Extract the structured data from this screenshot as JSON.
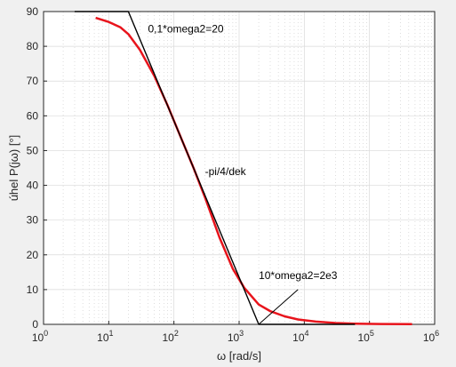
{
  "chart_data": {
    "type": "line",
    "xscale": "log",
    "xlim": [
      1,
      1000000
    ],
    "ylim": [
      0,
      90
    ],
    "grid": true,
    "minor_grid": true,
    "xlabel": "ω [rad/s]",
    "ylabel": "úhel P(jω) [°]",
    "xticks": [
      {
        "value": 1,
        "base": "10",
        "exp": "0"
      },
      {
        "value": 10,
        "base": "10",
        "exp": "1"
      },
      {
        "value": 100,
        "base": "10",
        "exp": "2"
      },
      {
        "value": 1000,
        "base": "10",
        "exp": "3"
      },
      {
        "value": 10000,
        "base": "10",
        "exp": "4"
      },
      {
        "value": 100000,
        "base": "10",
        "exp": "5"
      },
      {
        "value": 1000000,
        "base": "10",
        "exp": "6"
      }
    ],
    "yticks": [
      0,
      10,
      20,
      30,
      40,
      50,
      60,
      70,
      80,
      90
    ],
    "series": [
      {
        "color": "#e8141c",
        "x": [
          6.3,
          10,
          15,
          20,
          30,
          50,
          80,
          120,
          200,
          300,
          500,
          800,
          1200,
          2000,
          3000,
          5000,
          8000,
          15000,
          30000,
          60000,
          150000,
          450000
        ],
        "y": [
          88.2,
          87.0,
          85.5,
          83.5,
          79.0,
          71.5,
          63.0,
          55.0,
          45.0,
          36.5,
          25.0,
          16.0,
          10.5,
          5.7,
          3.8,
          2.3,
          1.4,
          0.8,
          0.4,
          0.2,
          0.1,
          0.05
        ]
      },
      {
        "color": "#000000",
        "x": [
          3,
          20,
          2000,
          60000
        ],
        "y": [
          90,
          90,
          0,
          0
        ]
      }
    ],
    "annotations": [
      {
        "text": "0,1*omega2=20",
        "x": 40,
        "y": 84
      },
      {
        "text": "-pi/4/dek",
        "x": 300,
        "y": 43
      },
      {
        "text": "10*omega2=2e3",
        "x": 2000,
        "y": 13
      }
    ],
    "leader_line": {
      "x": [
        2000,
        8000
      ],
      "y": [
        0,
        10
      ]
    }
  }
}
